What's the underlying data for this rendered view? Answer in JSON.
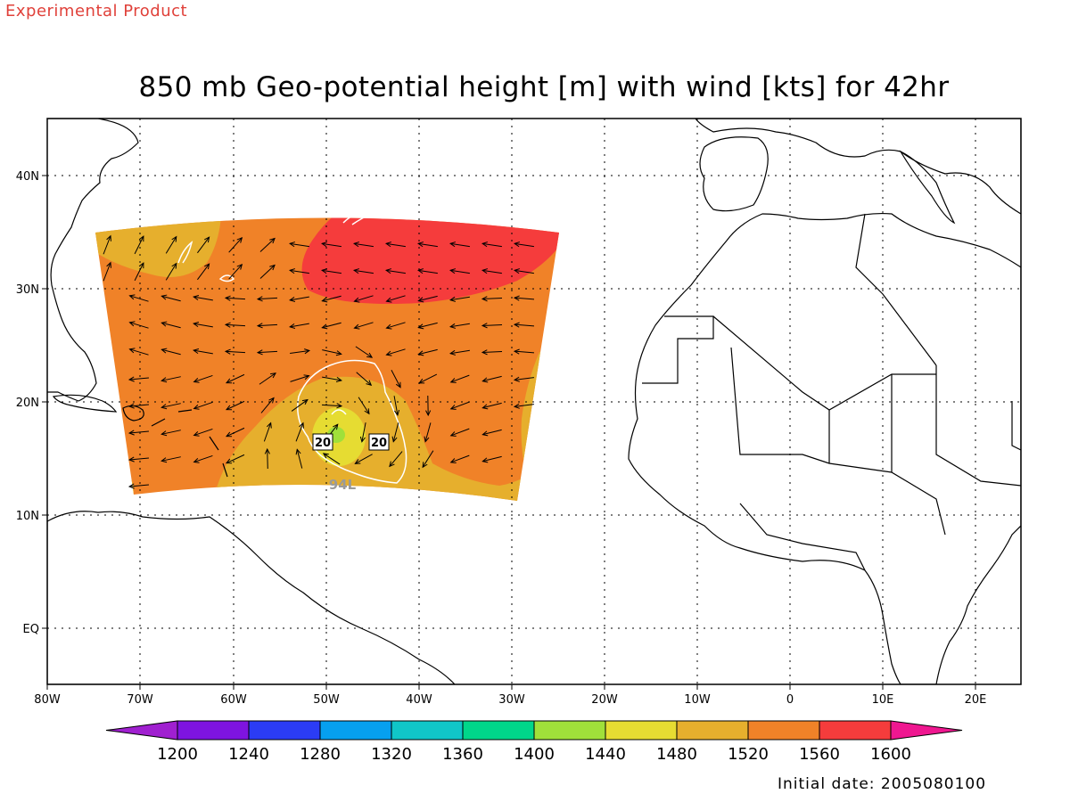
{
  "header": {
    "experimental_label": "Experimental Product",
    "title": "850 mb Geo-potential height [m] with wind [kts] for 42hr"
  },
  "footer": {
    "initial_date": "Initial date: 2005080100"
  },
  "map": {
    "lon_labels": [
      "80W",
      "70W",
      "60W",
      "50W",
      "40W",
      "30W",
      "20W",
      "10W",
      "0",
      "10E",
      "20E"
    ],
    "lat_labels": [
      "40N",
      "30N",
      "20N",
      "10N",
      "EQ"
    ],
    "storm_label": "94L",
    "contour_labels": [
      "20",
      "20"
    ]
  },
  "colorbar": {
    "levels": [
      "1200",
      "1240",
      "1280",
      "1320",
      "1360",
      "1400",
      "1440",
      "1480",
      "1520",
      "1560",
      "1600"
    ],
    "colors": [
      "#a020d0",
      "#7e14e0",
      "#2b3cf5",
      "#06a0ef",
      "#10c6c8",
      "#00d68a",
      "#a0e03a",
      "#e6dc32",
      "#e6af2d",
      "#f08228",
      "#f53c3c",
      "#ef1790"
    ]
  },
  "field_colors": {
    "h1520": "#e6af2d",
    "h1560": "#f08228",
    "h1600": "#f53c3c",
    "h1480": "#e6dc32",
    "h1440": "#a0e03a"
  }
}
